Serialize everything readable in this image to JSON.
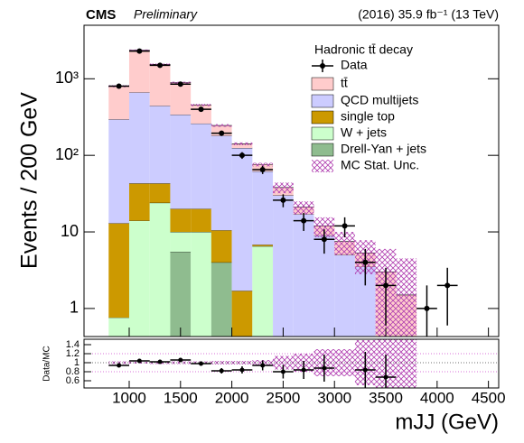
{
  "chart_data": [
    {
      "type": "stacked_histogram",
      "experiment": "CMS",
      "status": "Preliminary",
      "lumi_label": "(2016) 35.9 fb⁻¹ (13 TeV)",
      "ylabel": "Events / 200 GeV",
      "legend_title": "Hadronic tt̄ decay",
      "log_scale": true,
      "bins": [
        800,
        1000,
        1200,
        1400,
        1600,
        1800,
        2000,
        2200,
        2400,
        2600,
        2800,
        3000,
        3200,
        3400,
        3600,
        3800,
        4000,
        4200
      ],
      "series": [
        {
          "name": "Drell-Yan + jets",
          "color": "#8fbc8f",
          "values": [
            0,
            0,
            0,
            5.5,
            0,
            4,
            0,
            0,
            0,
            0,
            0,
            0,
            0,
            0,
            0,
            0,
            0
          ]
        },
        {
          "name": "W + jets",
          "color": "#ccffcc",
          "values": [
            0.76,
            14,
            24,
            4.5,
            10,
            0,
            0,
            6.5,
            0,
            0,
            0,
            0,
            0,
            0,
            0,
            0,
            0
          ]
        },
        {
          "name": "single top",
          "color": "#cc9900",
          "values": [
            12.2,
            29,
            19,
            10,
            10,
            6.5,
            1.7,
            0.3,
            0,
            0,
            0,
            0,
            0,
            0,
            0,
            0,
            0
          ]
        },
        {
          "name": "QCD multijets",
          "color": "#ccccff",
          "values": [
            282,
            620,
            400,
            320,
            240,
            170,
            123,
            55,
            30,
            17,
            9,
            5,
            3.5,
            0,
            0,
            0,
            0
          ]
        },
        {
          "name": "tt̄",
          "color": "#ffcccc",
          "values": [
            505,
            1700,
            1100,
            550,
            195,
            65,
            17,
            14,
            8,
            4,
            3,
            2.5,
            1.8,
            3,
            1.5,
            0,
            0
          ]
        }
      ],
      "data": {
        "name": "Data",
        "color": "#000000",
        "values": [
          800,
          2300,
          1500,
          850,
          400,
          195,
          100,
          65,
          26,
          14,
          8,
          12,
          4,
          2,
          null,
          1,
          2
        ],
        "errors": [
          28,
          48,
          39,
          29,
          20,
          14,
          10,
          8,
          5,
          3.7,
          2.8,
          3.5,
          2,
          1.4,
          null,
          1,
          1.4
        ]
      },
      "uncertainty": {
        "name": "MC Stat. Unc.",
        "color": "#cc66cc",
        "values": [
          25,
          50,
          40,
          25,
          15,
          10,
          6,
          4,
          6,
          4,
          3.5,
          2.5,
          2.5,
          3,
          3,
          0,
          0
        ]
      },
      "xlim": [
        560,
        4600
      ],
      "ylim": [
        0.43,
        5000
      ],
      "yticks": [
        1,
        10,
        {
          "value": 100,
          "label": "10²"
        },
        {
          "value": 1000,
          "label": "10³"
        }
      ]
    },
    {
      "type": "ratio",
      "ylabel": "Data/MC",
      "xlabel": "mJJ (GeV)",
      "values": [
        0.94,
        1.04,
        1.02,
        1.06,
        0.98,
        0.82,
        0.84,
        0.94,
        0.8,
        0.84,
        0.88,
        null,
        0.84,
        0.68,
        null,
        null,
        null
      ],
      "errors": [
        0.04,
        0.03,
        0.03,
        0.04,
        0.05,
        0.06,
        0.08,
        0.11,
        0.15,
        0.2,
        0.3,
        null,
        0.4,
        0.5,
        null,
        null,
        null
      ],
      "uncertainty": [
        0.03,
        0.02,
        0.03,
        0.03,
        0.03,
        0.04,
        0.04,
        0.06,
        0.15,
        0.2,
        0.3,
        0.3,
        0.5,
        1,
        1,
        0,
        0
      ],
      "reference_lines": [
        0.8,
        1,
        1.2
      ],
      "xlim": [
        560,
        4600
      ],
      "xticks": [
        1000,
        1500,
        2000,
        2500,
        3000,
        3500,
        4000,
        4500
      ],
      "ylim": [
        0.44,
        1.52
      ],
      "yticks": [
        0.6,
        0.8,
        1,
        1.2,
        1.4
      ]
    }
  ]
}
